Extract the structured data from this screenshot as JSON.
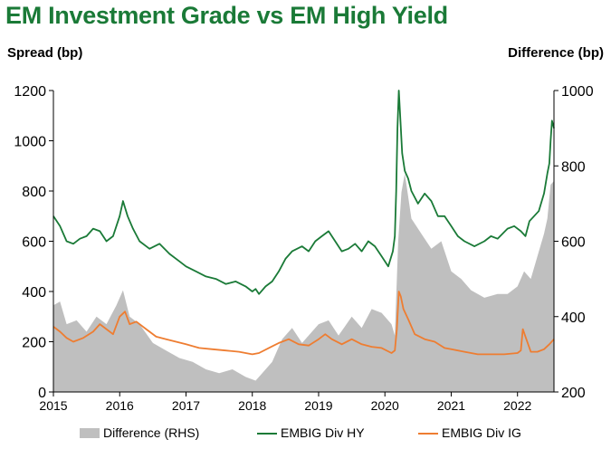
{
  "title": "EM Investment Grade vs EM High Yield",
  "colors": {
    "title": "#1a7a37",
    "hy": "#1a7a37",
    "ig": "#ee7d31",
    "diff": "#bfbfbf"
  },
  "chart_data": {
    "type": "line",
    "title": "EM Investment Grade vs EM High Yield",
    "ylabel": "Spread (bp)",
    "ylabel_right": "Difference (bp)",
    "xlim": [
      2015.0,
      2022.55
    ],
    "ylim": [
      0,
      1200
    ],
    "ylim_right": [
      200,
      1000
    ],
    "x_ticks": [
      2015,
      2016,
      2017,
      2018,
      2019,
      2020,
      2021,
      2022
    ],
    "y_ticks": [
      0,
      200,
      400,
      600,
      800,
      1000,
      1200
    ],
    "y_ticks_right": [
      200,
      400,
      600,
      800,
      1000
    ],
    "grid": false,
    "legend_position": "bottom",
    "series": [
      {
        "name": "Difference (RHS)",
        "type": "area",
        "axis": "right",
        "color": "#bfbfbf",
        "x": [
          2015.0,
          2015.1,
          2015.2,
          2015.35,
          2015.5,
          2015.65,
          2015.8,
          2015.95,
          2016.05,
          2016.15,
          2016.3,
          2016.5,
          2016.7,
          2016.9,
          2017.1,
          2017.3,
          2017.5,
          2017.7,
          2017.9,
          2018.05,
          2018.15,
          2018.3,
          2018.45,
          2018.6,
          2018.75,
          2018.9,
          2019.0,
          2019.15,
          2019.3,
          2019.5,
          2019.65,
          2019.8,
          2019.95,
          2020.1,
          2020.15,
          2020.2,
          2020.25,
          2020.3,
          2020.4,
          2020.55,
          2020.7,
          2020.85,
          2021.0,
          2021.15,
          2021.3,
          2021.5,
          2021.7,
          2021.85,
          2022.0,
          2022.1,
          2022.2,
          2022.3,
          2022.4,
          2022.45,
          2022.5,
          2022.55
        ],
        "values": [
          430,
          440,
          380,
          390,
          360,
          400,
          380,
          430,
          470,
          400,
          380,
          330,
          310,
          290,
          280,
          260,
          250,
          260,
          240,
          230,
          250,
          280,
          340,
          370,
          330,
          360,
          380,
          390,
          350,
          400,
          370,
          420,
          410,
          380,
          350,
          600,
          730,
          780,
          660,
          620,
          580,
          600,
          520,
          500,
          470,
          450,
          460,
          460,
          480,
          520,
          500,
          560,
          620,
          660,
          750,
          760
        ]
      },
      {
        "name": "EMBIG Div HY",
        "type": "line",
        "axis": "left",
        "color": "#1a7a37",
        "x": [
          2015.0,
          2015.1,
          2015.2,
          2015.3,
          2015.4,
          2015.5,
          2015.6,
          2015.7,
          2015.8,
          2015.9,
          2016.0,
          2016.05,
          2016.12,
          2016.2,
          2016.3,
          2016.45,
          2016.6,
          2016.75,
          2016.9,
          2017.0,
          2017.15,
          2017.3,
          2017.45,
          2017.6,
          2017.75,
          2017.9,
          2018.0,
          2018.05,
          2018.1,
          2018.2,
          2018.3,
          2018.4,
          2018.5,
          2018.6,
          2018.75,
          2018.85,
          2018.95,
          2019.05,
          2019.15,
          2019.25,
          2019.35,
          2019.45,
          2019.55,
          2019.65,
          2019.75,
          2019.85,
          2019.95,
          2020.05,
          2020.12,
          2020.15,
          2020.17,
          2020.19,
          2020.21,
          2020.23,
          2020.26,
          2020.3,
          2020.35,
          2020.4,
          2020.5,
          2020.6,
          2020.7,
          2020.8,
          2020.9,
          2021.0,
          2021.1,
          2021.2,
          2021.35,
          2021.5,
          2021.6,
          2021.7,
          2021.85,
          2021.95,
          2022.05,
          2022.12,
          2022.18,
          2022.25,
          2022.32,
          2022.4,
          2022.45,
          2022.48,
          2022.5,
          2022.52,
          2022.55
        ],
        "values": [
          700,
          660,
          600,
          590,
          610,
          620,
          650,
          640,
          600,
          620,
          700,
          760,
          700,
          650,
          600,
          570,
          590,
          550,
          520,
          500,
          480,
          460,
          450,
          430,
          440,
          420,
          400,
          410,
          390,
          420,
          440,
          480,
          530,
          560,
          580,
          560,
          600,
          620,
          640,
          600,
          560,
          570,
          590,
          560,
          600,
          580,
          540,
          500,
          560,
          620,
          800,
          1050,
          1200,
          1100,
          950,
          880,
          850,
          800,
          750,
          790,
          760,
          700,
          700,
          660,
          620,
          600,
          580,
          600,
          620,
          610,
          650,
          660,
          640,
          620,
          680,
          700,
          720,
          790,
          870,
          910,
          1000,
          1080,
          1050
        ]
      },
      {
        "name": "EMBIG Div IG",
        "type": "line",
        "axis": "left",
        "color": "#ee7d31",
        "x": [
          2015.0,
          2015.1,
          2015.2,
          2015.3,
          2015.45,
          2015.6,
          2015.7,
          2015.8,
          2015.9,
          2016.0,
          2016.08,
          2016.15,
          2016.25,
          2016.4,
          2016.55,
          2016.7,
          2016.85,
          2017.0,
          2017.2,
          2017.4,
          2017.6,
          2017.8,
          2018.0,
          2018.1,
          2018.25,
          2018.4,
          2018.55,
          2018.7,
          2018.85,
          2019.0,
          2019.1,
          2019.2,
          2019.35,
          2019.5,
          2019.65,
          2019.8,
          2019.95,
          2020.1,
          2020.15,
          2020.18,
          2020.21,
          2020.24,
          2020.28,
          2020.35,
          2020.45,
          2020.6,
          2020.75,
          2020.9,
          2021.0,
          2021.2,
          2021.4,
          2021.6,
          2021.8,
          2022.0,
          2022.05,
          2022.08,
          2022.12,
          2022.2,
          2022.3,
          2022.4,
          2022.48,
          2022.55
        ],
        "values": [
          260,
          240,
          215,
          200,
          215,
          240,
          270,
          250,
          230,
          300,
          320,
          270,
          280,
          250,
          220,
          210,
          200,
          190,
          175,
          170,
          165,
          160,
          150,
          155,
          175,
          195,
          210,
          190,
          185,
          210,
          230,
          210,
          190,
          210,
          190,
          180,
          175,
          155,
          165,
          250,
          400,
          380,
          330,
          290,
          230,
          210,
          200,
          175,
          170,
          160,
          150,
          150,
          150,
          155,
          165,
          250,
          220,
          160,
          160,
          170,
          190,
          210
        ]
      }
    ]
  }
}
